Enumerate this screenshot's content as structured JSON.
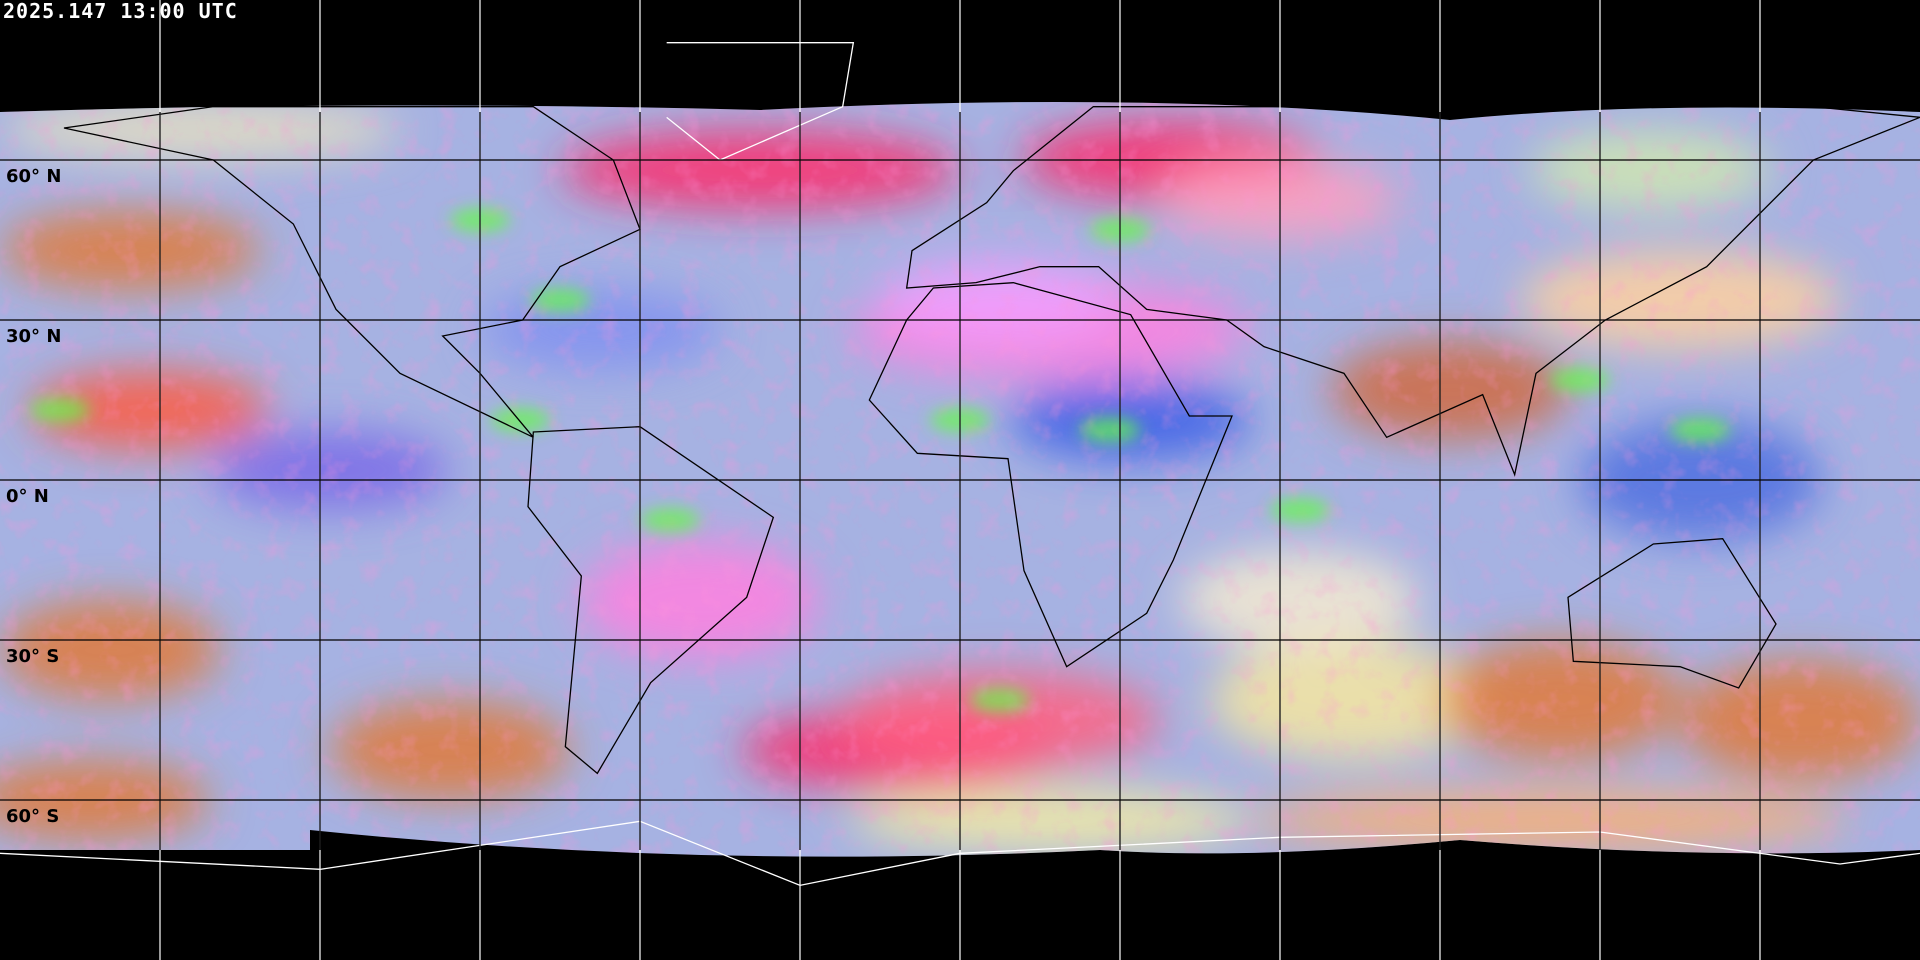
{
  "timestamp": "2025.147 13:00 UTC",
  "lat_labels": [
    {
      "text": "60° N",
      "lat": 60
    },
    {
      "text": "30° N",
      "lat": 30
    },
    {
      "text": "0° N",
      "lat": 0
    },
    {
      "text": "30° S",
      "lat": -30
    },
    {
      "text": "60° S",
      "lat": -60
    }
  ],
  "grid": {
    "lon_step_deg": 30,
    "lat_step_deg": 30
  },
  "projection": "equirectangular",
  "colors": {
    "background": "#000000",
    "coastline_over_space": "#ffffff",
    "coastline_over_image": "#000000",
    "ocean_clear": "#a6b2e2",
    "dust": "#ff80e0",
    "thick_cloud": "#e07a3a",
    "convective": "#ff2a6a",
    "thin_cirrus": "#f4ead0"
  }
}
